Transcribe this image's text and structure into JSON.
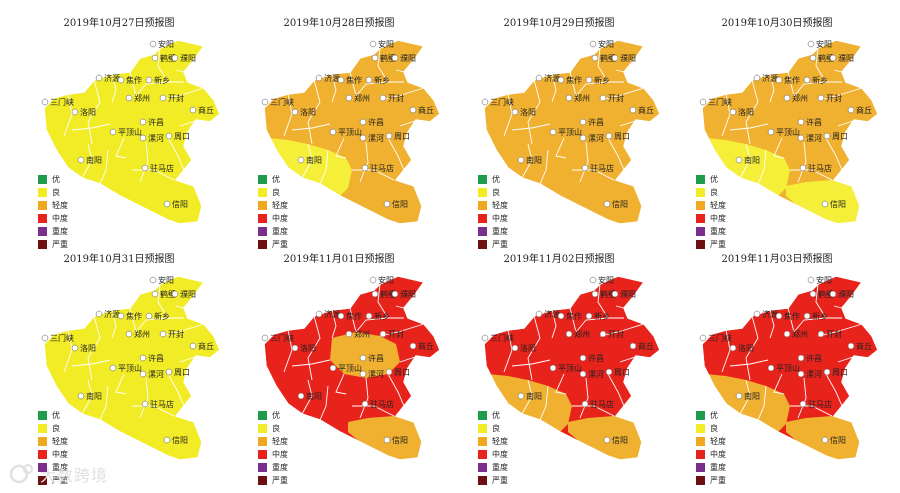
{
  "legend": {
    "items": [
      {
        "label": "优",
        "color": "#1e9c4b"
      },
      {
        "label": "良",
        "color": "#f2ec27"
      },
      {
        "label": "轻度",
        "color": "#f0a820"
      },
      {
        "label": "中度",
        "color": "#e8231c"
      },
      {
        "label": "重度",
        "color": "#7b2f8c"
      },
      {
        "label": "严重",
        "color": "#6e0f12"
      }
    ]
  },
  "cities": [
    "安阳",
    "鹤壁",
    "濮阳",
    "济源",
    "焦作",
    "新乡",
    "三门峡",
    "郑州",
    "开封",
    "洛阳",
    "商丘",
    "平顶山",
    "许昌",
    "漯河",
    "周口",
    "南阳",
    "驻马店",
    "信阳"
  ],
  "panels": [
    {
      "title": "2019年10月27日预报图",
      "base": "#f2ec27",
      "south": "#f2ec27",
      "southwest": "#f2ec27",
      "center": "#f2ec27"
    },
    {
      "title": "2019年10月28日预报图",
      "base": "#f0b030",
      "south": "#f0b030",
      "southwest": "#f5ef3a",
      "center": "#f0b030"
    },
    {
      "title": "2019年10月29日预报图",
      "base": "#f0b030",
      "south": "#f0b030",
      "southwest": "#f0b030",
      "center": "#f0b030"
    },
    {
      "title": "2019年10月30日预报图",
      "base": "#f0b030",
      "south": "#f5ef3a",
      "southwest": "#f5ef3a",
      "center": "#f0b030"
    },
    {
      "title": "2019年10月31日预报图",
      "base": "#f2ec27",
      "south": "#f2ec27",
      "southwest": "#f2ec27",
      "center": "#f2ec27"
    },
    {
      "title": "2019年11月01日预报图",
      "base": "#e8231c",
      "south": "#f0b030",
      "southwest": "#e8231c",
      "center": "#f0b030"
    },
    {
      "title": "2019年11月02日预报图",
      "base": "#e8231c",
      "south": "#f0b030",
      "southwest": "#f0b030",
      "center": "#e8231c"
    },
    {
      "title": "2019年11月03日预报图",
      "base": "#e8231c",
      "south": "#f0b030",
      "southwest": "#f0b030",
      "center": "#e8231c"
    }
  ],
  "watermark": {
    "text": "大数跨境"
  }
}
